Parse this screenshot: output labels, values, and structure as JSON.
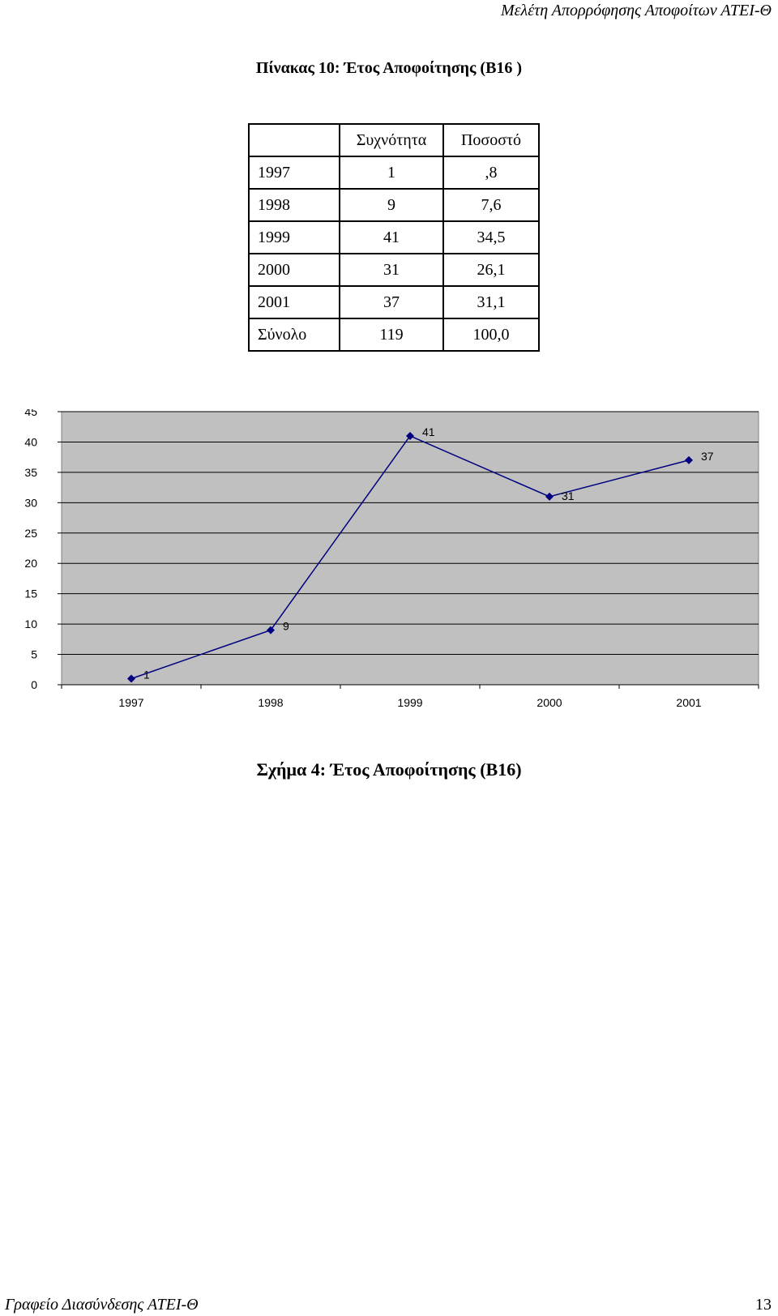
{
  "header": {
    "running_title": "Μελέτη Απορρόφησης Αποφοίτων ΑΤΕΙ-Θ"
  },
  "table": {
    "title": "Πίνακας 10: Έτος Αποφοίτησης (Β16 )",
    "columns": [
      "",
      "Συχνότητα",
      "Ποσοστό"
    ],
    "rows": [
      [
        "1997",
        "1",
        ",8"
      ],
      [
        "1998",
        "9",
        "7,6"
      ],
      [
        "1999",
        "41",
        "34,5"
      ],
      [
        "2000",
        "31",
        "26,1"
      ],
      [
        "2001",
        "37",
        "31,1"
      ],
      [
        "Σύνολο",
        "119",
        "100,0"
      ]
    ]
  },
  "chart_data": {
    "type": "line",
    "title": "",
    "xlabel": "",
    "ylabel": "",
    "categories": [
      "1997",
      "1998",
      "1999",
      "2000",
      "2001"
    ],
    "series": [
      {
        "values": [
          1,
          9,
          41,
          31,
          37
        ],
        "color": "#000080"
      }
    ],
    "ylim": [
      0,
      45
    ],
    "yticks": [
      0,
      5,
      10,
      15,
      20,
      25,
      30,
      35,
      40,
      45
    ],
    "data_labels": [
      "1",
      "9",
      "41",
      "31",
      "37"
    ],
    "grid": true,
    "legend": "none",
    "plot_background": "#c0c0c0"
  },
  "figure": {
    "caption": "Σχήμα 4: Έτος Αποφοίτησης (Β16)"
  },
  "footer": {
    "running_title": "Γραφείο Διασύνδεσης ΑΤΕΙ-Θ",
    "page_number": "13"
  }
}
